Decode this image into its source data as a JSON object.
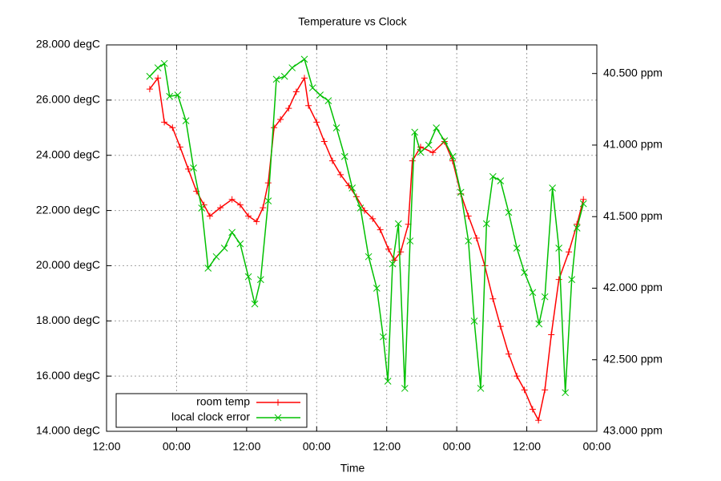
{
  "chart_data": {
    "type": "line",
    "title": "Temperature vs Clock",
    "x_label": "Time",
    "xlim": [
      0,
      84
    ],
    "xticks": [
      {
        "value": 0,
        "label": "12:00"
      },
      {
        "value": 12,
        "label": "00:00"
      },
      {
        "value": 24,
        "label": "12:00"
      },
      {
        "value": 36,
        "label": "00:00"
      },
      {
        "value": 48,
        "label": "12:00"
      },
      {
        "value": 60,
        "label": "00:00"
      },
      {
        "value": 72,
        "label": "12:00"
      },
      {
        "value": 84,
        "label": "00:00"
      }
    ],
    "ylim": [
      14,
      28
    ],
    "yticks": [
      {
        "value": 14,
        "label": "14.000 degC"
      },
      {
        "value": 16,
        "label": "16.000 degC"
      },
      {
        "value": 18,
        "label": "18.000 degC"
      },
      {
        "value": 20,
        "label": "20.000 degC"
      },
      {
        "value": 22,
        "label": "22.000 degC"
      },
      {
        "value": 24,
        "label": "24.000 degC"
      },
      {
        "value": 26,
        "label": "26.000 degC"
      },
      {
        "value": 28,
        "label": "28.000 degC"
      }
    ],
    "y2lim": [
      43,
      40.3
    ],
    "y2ticks": [
      {
        "value": 40.5,
        "label": "40.500 ppm"
      },
      {
        "value": 41,
        "label": "41.000 ppm"
      },
      {
        "value": 41.5,
        "label": "41.500 ppm"
      },
      {
        "value": 42,
        "label": "42.000 ppm"
      },
      {
        "value": 42.5,
        "label": "42.500 ppm"
      },
      {
        "value": 43,
        "label": "43.000 ppm"
      }
    ],
    "grid": true,
    "legend": "bottom left",
    "series": [
      {
        "name": "room temp",
        "color": "#ff0000",
        "marker": "plus",
        "axis": "y",
        "x": [
          7.4,
          8.8,
          9.9,
          11.3,
          12.6,
          14.0,
          15.4,
          16.7,
          17.7,
          19.5,
          21.5,
          22.9,
          24.3,
          25.7,
          26.8,
          27.7,
          28.7,
          29.8,
          31.2,
          32.5,
          33.9,
          34.6,
          36.0,
          37.3,
          38.7,
          40.1,
          41.5,
          42.8,
          44.2,
          45.6,
          46.9,
          48.3,
          49.3,
          50.4,
          51.7,
          52.4,
          53.8,
          55.9,
          57.9,
          59.3,
          60.7,
          62.0,
          63.4,
          64.8,
          66.2,
          67.5,
          68.9,
          70.3,
          71.6,
          73.0,
          74.0,
          75.1,
          76.2,
          77.5,
          79.2,
          80.6,
          81.7
        ],
        "values": [
          26.4,
          26.8,
          25.2,
          25.0,
          24.3,
          23.5,
          22.7,
          22.2,
          21.8,
          22.1,
          22.4,
          22.2,
          21.8,
          21.6,
          22.1,
          23.0,
          25.0,
          25.3,
          25.7,
          26.3,
          26.8,
          25.8,
          25.2,
          24.5,
          23.8,
          23.3,
          22.9,
          22.5,
          22.0,
          21.7,
          21.3,
          20.6,
          20.2,
          20.5,
          21.5,
          23.8,
          24.3,
          24.1,
          24.5,
          23.8,
          22.6,
          21.8,
          21.0,
          20.0,
          18.8,
          17.8,
          16.8,
          16.0,
          15.5,
          14.8,
          14.4,
          15.5,
          17.5,
          19.5,
          20.5,
          21.5,
          22.4
        ]
      },
      {
        "name": "local clock error",
        "color": "#00c000",
        "marker": "cross",
        "axis": "y2",
        "x": [
          7.4,
          8.8,
          9.9,
          10.8,
          12.2,
          13.6,
          14.9,
          16.3,
          17.4,
          18.8,
          20.2,
          21.5,
          22.9,
          24.3,
          25.4,
          26.4,
          27.7,
          29.1,
          30.5,
          31.8,
          33.9,
          35.3,
          36.6,
          38.0,
          39.4,
          40.8,
          42.1,
          43.5,
          44.9,
          46.3,
          47.4,
          48.2,
          49.0,
          50.0,
          51.1,
          52.0,
          52.8,
          53.8,
          55.2,
          56.5,
          57.9,
          59.3,
          60.7,
          62.0,
          63.0,
          64.1,
          65.1,
          66.2,
          67.5,
          68.9,
          70.3,
          71.6,
          73.0,
          74.1,
          75.1,
          76.4,
          77.5,
          78.6,
          79.7,
          80.6,
          81.7
        ],
        "values": [
          40.52,
          40.46,
          40.43,
          40.66,
          40.65,
          40.83,
          41.16,
          41.44,
          41.86,
          41.78,
          41.72,
          41.61,
          41.69,
          41.92,
          42.11,
          41.94,
          41.39,
          40.54,
          40.52,
          40.46,
          40.4,
          40.6,
          40.65,
          40.69,
          40.88,
          41.08,
          41.3,
          41.44,
          41.78,
          42.0,
          42.34,
          42.65,
          41.83,
          41.55,
          42.7,
          41.67,
          40.91,
          41.05,
          41.0,
          40.88,
          40.97,
          41.08,
          41.33,
          41.67,
          42.23,
          42.7,
          41.55,
          41.22,
          41.25,
          41.47,
          41.72,
          41.89,
          42.03,
          42.25,
          42.06,
          41.3,
          41.72,
          42.73,
          41.94,
          41.58,
          41.41
        ]
      }
    ]
  }
}
